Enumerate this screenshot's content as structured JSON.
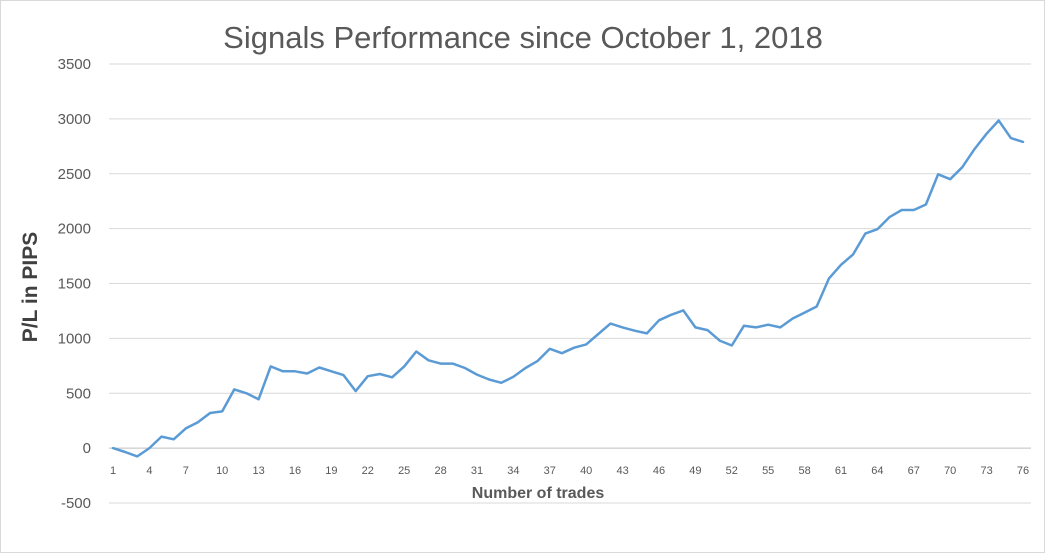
{
  "chart_data": {
    "type": "line",
    "title": "Signals Performance since October 1, 2018",
    "xlabel": "Number of trades",
    "ylabel": "P/L in PIPS",
    "ylim": [
      -500,
      3500
    ],
    "ystep": 500,
    "yticks": [
      "-500",
      "0",
      "500",
      "1000",
      "1500",
      "2000",
      "2500",
      "3000",
      "3500"
    ],
    "xticks": [
      "1",
      "4",
      "7",
      "10",
      "13",
      "16",
      "19",
      "22",
      "25",
      "28",
      "31",
      "34",
      "37",
      "40",
      "43",
      "46",
      "49",
      "52",
      "55",
      "58",
      "61",
      "64",
      "67",
      "70",
      "73",
      "76"
    ],
    "grid": true,
    "legend": "none",
    "color": "#5b9bd5",
    "x": [
      1,
      2,
      3,
      4,
      5,
      6,
      7,
      8,
      9,
      10,
      11,
      12,
      13,
      14,
      15,
      16,
      17,
      18,
      19,
      20,
      21,
      22,
      23,
      24,
      25,
      26,
      27,
      28,
      29,
      30,
      31,
      32,
      33,
      34,
      35,
      36,
      37,
      38,
      39,
      40,
      41,
      42,
      43,
      44,
      45,
      46,
      47,
      48,
      49,
      50,
      51,
      52,
      53,
      54,
      55,
      56,
      57,
      58,
      59,
      60,
      61,
      62,
      63,
      64,
      65,
      66,
      67,
      68,
      69,
      70,
      71,
      72,
      73,
      74,
      75,
      76
    ],
    "values": [
      0,
      -35,
      -75,
      0,
      105,
      80,
      180,
      235,
      320,
      335,
      535,
      500,
      445,
      745,
      700,
      700,
      680,
      735,
      700,
      665,
      520,
      655,
      675,
      645,
      745,
      880,
      800,
      770,
      770,
      730,
      670,
      625,
      595,
      650,
      730,
      795,
      905,
      865,
      915,
      945,
      1040,
      1135,
      1100,
      1070,
      1045,
      1165,
      1215,
      1255,
      1100,
      1075,
      980,
      935,
      1115,
      1100,
      1125,
      1100,
      1180,
      1235,
      1290,
      1545,
      1670,
      1765,
      1955,
      1995,
      2105,
      2170,
      2170,
      2220,
      2495,
      2450,
      2560,
      2725,
      2865,
      2985,
      2825,
      2790
    ]
  }
}
